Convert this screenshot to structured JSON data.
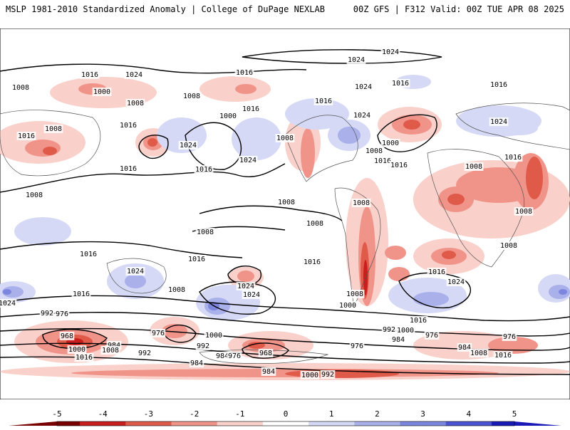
{
  "header": {
    "left_title": "MSLP 1981-2010 Standardized Anomaly | College of DuPage NEXLAB",
    "right_title": "00Z GFS | F312 Valid: 00Z TUE APR 08 2025"
  },
  "colors": {
    "neg5": "#7a0000",
    "neg4": "#c81e1e",
    "neg3": "#e05a4a",
    "neg2": "#f0948a",
    "neg1": "#fad0ca",
    "zero": "#ffffff",
    "pos1": "#d6d9f5",
    "pos2": "#a9b0ea",
    "pos3": "#7d86df",
    "pos4": "#4a53d4",
    "pos5": "#1a1ab8",
    "contour": "#000000",
    "coast": "#555555"
  },
  "colorbar": {
    "ticks": [
      "-5",
      "-4",
      "-3",
      "-2",
      "-1",
      "0",
      "1",
      "2",
      "3",
      "4",
      "5"
    ]
  },
  "isobar_labels": [
    "1024",
    "1016",
    "1008",
    "1000",
    "992",
    "984",
    "976",
    "968"
  ]
}
